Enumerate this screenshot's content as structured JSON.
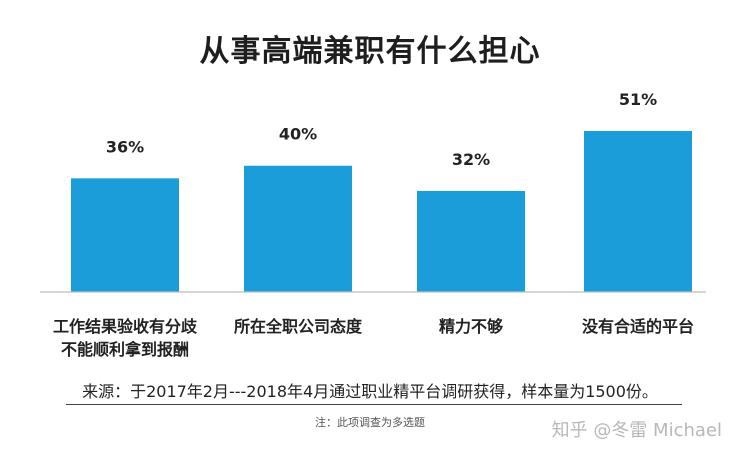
{
  "chart_data": {
    "type": "bar",
    "title": "从事高端兼职有什么担心",
    "categories": [
      [
        "工作结果验收有分歧",
        "不能顺利拿到报酬"
      ],
      [
        "所在全职公司态度"
      ],
      [
        "精力不够"
      ],
      [
        "没有合适的平台"
      ]
    ],
    "values": [
      36,
      40,
      32,
      51
    ],
    "value_labels": [
      "36%",
      "40%",
      "32%",
      "51%"
    ],
    "ylim": [
      0,
      51
    ],
    "grid": false,
    "bar_color": "#1a9dd9"
  },
  "source": "来源：于2017年2月---2018年4月通过职业精平台调研获得，样本量为1500份。",
  "note": "注：此项调查为多选题",
  "watermark": "知乎 @冬雷 Michael"
}
